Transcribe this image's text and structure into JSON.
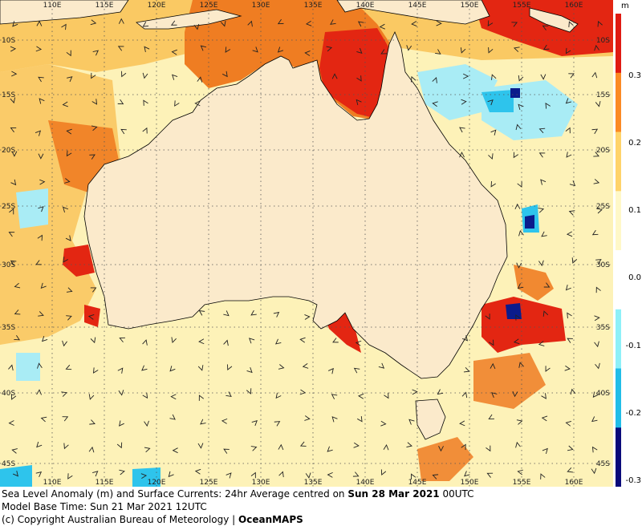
{
  "map": {
    "lon_labels": [
      "110E",
      "115E",
      "120E",
      "125E",
      "130E",
      "135E",
      "140E",
      "145E",
      "150E",
      "155E",
      "160E"
    ],
    "lat_labels": [
      "10S",
      "15S",
      "20S",
      "25S",
      "30S",
      "35S",
      "40S",
      "45S"
    ],
    "colors": {
      "land": "#fbeacb",
      "ocean_base": "#fdf2b8",
      "ocean_warm": "#f9c45a",
      "ocean_hot": "#ef7d22",
      "ocean_red": "#e32612",
      "ocean_lowblue": "#a9ecf5",
      "ocean_blue": "#2ec4ec",
      "ocean_navy": "#0a1b8c",
      "grid": "#555555",
      "arrow": "#222222"
    }
  },
  "legend": {
    "unit": "m",
    "ticks": [
      "0.3",
      "0.2",
      "0.1",
      "0.0",
      "-0.1",
      "-0.2",
      "-0.3"
    ],
    "colors": [
      "#e01a12",
      "#fb8a24",
      "#ffd36a",
      "#fff8c8",
      "#ffffff",
      "#8ef0f8",
      "#21bde8",
      "#0a0a7a"
    ]
  },
  "caption": {
    "line1_prefix": "Sea Level Anomaly (m) and Surface Currents: 24hr Average centred on ",
    "line1_date": "Sun 28 Mar 2021",
    "line1_suffix": " 00UTC",
    "line2": "Model Base Time: Sun 21 Mar 2021 12UTC",
    "line3_prefix": "(c) Copyright Australian Bureau of Meteorology | ",
    "line3_brand": "OceanMAPS"
  }
}
